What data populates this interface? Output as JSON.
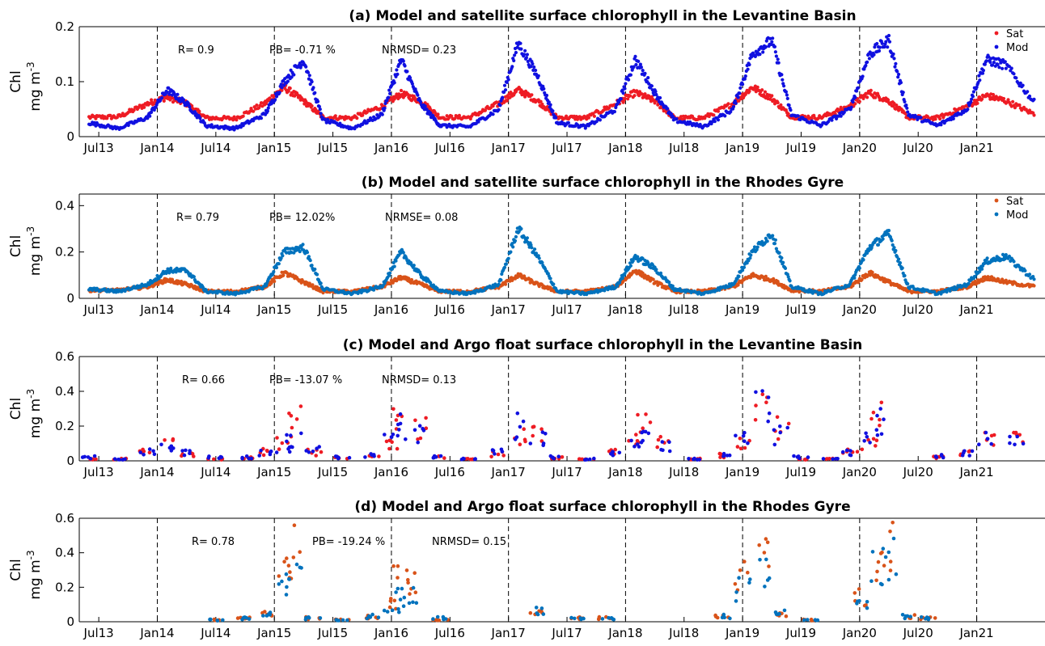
{
  "colors": {
    "sat_a": "#ee1c24",
    "mod_a": "#1010e0",
    "sat_b": "#d95319",
    "mod_b": "#0072bd"
  },
  "chart_data": [
    {
      "type": "scatter",
      "title": "(a) Model and satellite surface chlorophyll in the Levantine Basin",
      "ylabel": "Chl mg m",
      "ylabel_sup": "-3",
      "ylim": [
        0,
        0.2
      ],
      "yticks": [
        "0",
        "0.1",
        "0.2"
      ],
      "x_range": [
        "2013-05",
        "2021-08"
      ],
      "xticks": [
        "Jul13",
        "Jan14",
        "Jul14",
        "Jan15",
        "Jul15",
        "Jan16",
        "Jul16",
        "Jan17",
        "Jul17",
        "Jan18",
        "Jul18",
        "Jan19",
        "Jul19",
        "Jan20",
        "Jul20",
        "Jan21"
      ],
      "vlines_at": [
        "Jan14",
        "Jan15",
        "Jan16",
        "Jan17",
        "Jan18",
        "Jan19",
        "Jan20",
        "Jan21"
      ],
      "stats": [
        "R= 0.9",
        "PB= -0.71 %",
        "NRMSD= 0.23"
      ],
      "legend": [
        "Sat",
        "Mod"
      ],
      "legend_position": "top-right",
      "series": [
        {
          "name": "Sat",
          "color_key": "sat_a",
          "style": "dense",
          "x": [
            "2013-06",
            "2013-09",
            "2013-12",
            "2014-02",
            "2014-04",
            "2014-06",
            "2014-09",
            "2014-12",
            "2015-02",
            "2015-04",
            "2015-06",
            "2015-09",
            "2015-12",
            "2016-02",
            "2016-04",
            "2016-06",
            "2016-09",
            "2016-12",
            "2017-02",
            "2017-04",
            "2017-06",
            "2017-09",
            "2017-12",
            "2018-02",
            "2018-04",
            "2018-06",
            "2018-09",
            "2018-12",
            "2019-02",
            "2019-04",
            "2019-06",
            "2019-09",
            "2019-12",
            "2020-02",
            "2020-04",
            "2020-06",
            "2020-09",
            "2020-12",
            "2021-02",
            "2021-04",
            "2021-07"
          ],
          "y": [
            0.035,
            0.036,
            0.06,
            0.072,
            0.06,
            0.034,
            0.033,
            0.06,
            0.09,
            0.065,
            0.035,
            0.034,
            0.055,
            0.078,
            0.065,
            0.035,
            0.035,
            0.06,
            0.085,
            0.065,
            0.035,
            0.034,
            0.06,
            0.08,
            0.065,
            0.034,
            0.034,
            0.06,
            0.09,
            0.07,
            0.036,
            0.035,
            0.055,
            0.08,
            0.065,
            0.035,
            0.034,
            0.055,
            0.075,
            0.065,
            0.04
          ]
        },
        {
          "name": "Mod",
          "color_key": "mod_a",
          "style": "dense",
          "x": [
            "2013-06",
            "2013-09",
            "2013-12",
            "2014-02",
            "2014-04",
            "2014-06",
            "2014-09",
            "2014-12",
            "2015-02",
            "2015-04",
            "2015-06",
            "2015-09",
            "2015-12",
            "2016-02",
            "2016-04",
            "2016-06",
            "2016-09",
            "2016-12",
            "2017-02",
            "2017-04",
            "2017-06",
            "2017-09",
            "2017-12",
            "2018-02",
            "2018-04",
            "2018-06",
            "2018-09",
            "2018-12",
            "2019-02",
            "2019-04",
            "2019-06",
            "2019-09",
            "2019-12",
            "2020-02",
            "2020-04",
            "2020-06",
            "2020-09",
            "2020-12",
            "2021-02",
            "2021-04",
            "2021-07"
          ],
          "y": [
            0.025,
            0.015,
            0.035,
            0.085,
            0.06,
            0.02,
            0.015,
            0.04,
            0.1,
            0.14,
            0.03,
            0.015,
            0.04,
            0.14,
            0.06,
            0.02,
            0.018,
            0.05,
            0.17,
            0.11,
            0.025,
            0.018,
            0.05,
            0.14,
            0.08,
            0.03,
            0.018,
            0.05,
            0.15,
            0.175,
            0.04,
            0.02,
            0.05,
            0.15,
            0.175,
            0.04,
            0.02,
            0.05,
            0.14,
            0.13,
            0.06
          ]
        }
      ]
    },
    {
      "type": "scatter",
      "title": "(b) Model and satellite surface chlorophyll in the Rhodes  Gyre",
      "ylabel": "Chl mg m",
      "ylabel_sup": "-3",
      "ylim": [
        0,
        0.45
      ],
      "yticks": [
        "0",
        "0.2",
        "0.4"
      ],
      "x_range": [
        "2013-05",
        "2021-08"
      ],
      "xticks": [
        "Jul13",
        "Jan14",
        "Jul14",
        "Jan15",
        "Jul15",
        "Jan16",
        "Jul16",
        "Jan17",
        "Jul17",
        "Jan18",
        "Jul18",
        "Jan19",
        "Jul19",
        "Jan20",
        "Jul20",
        "Jan21"
      ],
      "vlines_at": [
        "Jan14",
        "Jan15",
        "Jan16",
        "Jan17",
        "Jan18",
        "Jan19",
        "Jan20",
        "Jan21"
      ],
      "stats": [
        "R= 0.79",
        "PB= 12.02%",
        "NRMSE= 0.08"
      ],
      "legend": [
        "Sat",
        "Mod"
      ],
      "legend_position": "top-right",
      "series": [
        {
          "name": "Sat",
          "color_key": "sat_b",
          "style": "dense",
          "x": [
            "2013-06",
            "2013-09",
            "2013-12",
            "2014-02",
            "2014-04",
            "2014-06",
            "2014-09",
            "2014-12",
            "2015-02",
            "2015-04",
            "2015-06",
            "2015-09",
            "2015-12",
            "2016-02",
            "2016-04",
            "2016-06",
            "2016-09",
            "2016-12",
            "2017-02",
            "2017-04",
            "2017-06",
            "2017-09",
            "2017-12",
            "2018-02",
            "2018-04",
            "2018-06",
            "2018-09",
            "2018-12",
            "2019-02",
            "2019-04",
            "2019-06",
            "2019-09",
            "2019-12",
            "2020-02",
            "2020-04",
            "2020-06",
            "2020-09",
            "2020-12",
            "2021-02",
            "2021-04",
            "2021-07"
          ],
          "y": [
            0.035,
            0.035,
            0.05,
            0.08,
            0.06,
            0.03,
            0.03,
            0.05,
            0.11,
            0.07,
            0.03,
            0.03,
            0.05,
            0.09,
            0.06,
            0.03,
            0.03,
            0.05,
            0.1,
            0.06,
            0.03,
            0.03,
            0.05,
            0.12,
            0.07,
            0.03,
            0.03,
            0.05,
            0.1,
            0.08,
            0.035,
            0.03,
            0.05,
            0.11,
            0.07,
            0.03,
            0.03,
            0.05,
            0.09,
            0.07,
            0.05
          ]
        },
        {
          "name": "Mod",
          "color_key": "mod_b",
          "style": "dense",
          "x": [
            "2013-06",
            "2013-09",
            "2013-12",
            "2014-02",
            "2014-04",
            "2014-06",
            "2014-09",
            "2014-12",
            "2015-02",
            "2015-04",
            "2015-06",
            "2015-09",
            "2015-12",
            "2016-02",
            "2016-04",
            "2016-06",
            "2016-09",
            "2016-12",
            "2017-02",
            "2017-04",
            "2017-06",
            "2017-09",
            "2017-12",
            "2018-02",
            "2018-04",
            "2018-06",
            "2018-09",
            "2018-12",
            "2019-02",
            "2019-04",
            "2019-06",
            "2019-09",
            "2019-12",
            "2020-02",
            "2020-04",
            "2020-06",
            "2020-09",
            "2020-12",
            "2021-02",
            "2021-04",
            "2021-07"
          ],
          "y": [
            0.04,
            0.03,
            0.06,
            0.12,
            0.12,
            0.03,
            0.02,
            0.05,
            0.2,
            0.22,
            0.04,
            0.02,
            0.05,
            0.2,
            0.1,
            0.03,
            0.02,
            0.06,
            0.3,
            0.18,
            0.03,
            0.02,
            0.05,
            0.18,
            0.13,
            0.04,
            0.02,
            0.06,
            0.2,
            0.28,
            0.05,
            0.02,
            0.06,
            0.22,
            0.28,
            0.05,
            0.02,
            0.06,
            0.16,
            0.18,
            0.08
          ]
        }
      ]
    },
    {
      "type": "scatter",
      "title": "(c) Model and Argo float surface chlorophyll in the Levantine Basin",
      "ylabel": "Chl mg m",
      "ylabel_sup": "-3",
      "ylim": [
        0,
        0.6
      ],
      "yticks": [
        "0",
        "0.2",
        "0.4",
        "0.6"
      ],
      "x_range": [
        "2013-05",
        "2021-08"
      ],
      "xticks": [
        "Jul13",
        "Jan14",
        "Jul14",
        "Jan15",
        "Jul15",
        "Jan16",
        "Jul16",
        "Jan17",
        "Jul17",
        "Jan18",
        "Jul18",
        "Jan19",
        "Jul19",
        "Jan20",
        "Jul20",
        "Jan21"
      ],
      "vlines_at": [
        "Jan14",
        "Jan15",
        "Jan16",
        "Jan17",
        "Jan18",
        "Jan19",
        "Jan20",
        "Jan21"
      ],
      "stats": [
        "R= 0.66",
        "PB= -13.07 %",
        "NRMSD= 0.13"
      ],
      "legend": [],
      "series": [
        {
          "name": "Argo",
          "color_key": "sat_a",
          "style": "sparse",
          "x": [
            "2013-06",
            "2013-09",
            "2013-12",
            "2014-02",
            "2014-04",
            "2014-07",
            "2014-10",
            "2014-12",
            "2015-02",
            "2015-03",
            "2015-05",
            "2015-08",
            "2015-11",
            "2016-01",
            "2016-02",
            "2016-04",
            "2016-06",
            "2016-09",
            "2016-12",
            "2017-02",
            "2017-04",
            "2017-06",
            "2017-09",
            "2017-12",
            "2018-02",
            "2018-03",
            "2018-05",
            "2018-08",
            "2018-11",
            "2019-01",
            "2019-03",
            "2019-05",
            "2019-07",
            "2019-10",
            "2019-12",
            "2020-02",
            "2020-03",
            "2020-09",
            "2020-12",
            "2021-02",
            "2021-05"
          ],
          "y": [
            0.01,
            0.01,
            0.05,
            0.1,
            0.04,
            0.01,
            0.02,
            0.05,
            0.1,
            0.3,
            0.05,
            0.02,
            0.03,
            0.1,
            0.3,
            0.2,
            0.02,
            0.01,
            0.04,
            0.15,
            0.15,
            0.02,
            0.01,
            0.05,
            0.12,
            0.2,
            0.1,
            0.01,
            0.03,
            0.1,
            0.35,
            0.2,
            0.01,
            0.01,
            0.05,
            0.1,
            0.25,
            0.02,
            0.05,
            0.15,
            0.12
          ]
        },
        {
          "name": "Mod",
          "color_key": "mod_a",
          "style": "sparse",
          "x": [
            "2013-06",
            "2013-09",
            "2013-12",
            "2014-02",
            "2014-04",
            "2014-07",
            "2014-10",
            "2014-12",
            "2015-02",
            "2015-03",
            "2015-05",
            "2015-08",
            "2015-11",
            "2016-01",
            "2016-02",
            "2016-04",
            "2016-06",
            "2016-09",
            "2016-12",
            "2017-02",
            "2017-04",
            "2017-06",
            "2017-09",
            "2017-12",
            "2018-02",
            "2018-03",
            "2018-05",
            "2018-08",
            "2018-11",
            "2019-01",
            "2019-03",
            "2019-05",
            "2019-07",
            "2019-10",
            "2019-12",
            "2020-02",
            "2020-03",
            "2020-09",
            "2020-12",
            "2021-02",
            "2021-05"
          ],
          "y": [
            0.02,
            0.01,
            0.05,
            0.08,
            0.05,
            0.02,
            0.02,
            0.05,
            0.08,
            0.12,
            0.06,
            0.02,
            0.03,
            0.12,
            0.2,
            0.15,
            0.02,
            0.01,
            0.05,
            0.2,
            0.12,
            0.02,
            0.01,
            0.05,
            0.12,
            0.15,
            0.08,
            0.01,
            0.03,
            0.12,
            0.3,
            0.15,
            0.02,
            0.01,
            0.05,
            0.15,
            0.22,
            0.03,
            0.05,
            0.12,
            0.12
          ]
        }
      ]
    },
    {
      "type": "scatter",
      "title": "(d) Model and Argo float surface chlorophyll in the Rhodes Gyre",
      "ylabel": "Chl mg m",
      "ylabel_sup": "-3",
      "ylim": [
        0,
        0.6
      ],
      "yticks": [
        "0",
        "0.2",
        "0.4",
        "0.6"
      ],
      "x_range": [
        "2013-05",
        "2021-08"
      ],
      "xticks": [
        "Jul13",
        "Jan14",
        "Jul14",
        "Jan15",
        "Jul15",
        "Jan16",
        "Jul16",
        "Jan17",
        "Jul17",
        "Jan18",
        "Jul18",
        "Jan19",
        "Jul19",
        "Jan20",
        "Jul20",
        "Jan21"
      ],
      "vlines_at": [
        "Jan14",
        "Jan15",
        "Jan16",
        "Jan17",
        "Jan18",
        "Jan19",
        "Jan20",
        "Jan21"
      ],
      "stats": [
        "R= 0.78",
        "PB= -19.24 %",
        "NRMSD= 0.15"
      ],
      "legend": [],
      "series": [
        {
          "name": "Argo",
          "color_key": "sat_b",
          "style": "sparse",
          "x": [
            "2014-07",
            "2014-10",
            "2014-12",
            "2015-02",
            "2015-03",
            "2015-05",
            "2015-08",
            "2015-11",
            "2016-01",
            "2016-02",
            "2016-03",
            "2016-06",
            "2017-04",
            "2017-08",
            "2017-11",
            "2018-11",
            "2019-01",
            "2019-03",
            "2019-05",
            "2019-08",
            "2020-01",
            "2020-03",
            "2020-04",
            "2020-06",
            "2020-08"
          ],
          "y": [
            0.01,
            0.02,
            0.05,
            0.3,
            0.4,
            0.02,
            0.01,
            0.03,
            0.1,
            0.3,
            0.25,
            0.01,
            0.05,
            0.02,
            0.02,
            0.03,
            0.25,
            0.35,
            0.05,
            0.01,
            0.15,
            0.3,
            0.45,
            0.03,
            0.02
          ]
        },
        {
          "name": "Mod",
          "color_key": "mod_b",
          "style": "sparse",
          "x": [
            "2014-07",
            "2014-10",
            "2014-12",
            "2015-02",
            "2015-03",
            "2015-05",
            "2015-08",
            "2015-11",
            "2016-01",
            "2016-02",
            "2016-03",
            "2016-06",
            "2017-04",
            "2017-08",
            "2017-11",
            "2018-11",
            "2019-01",
            "2019-03",
            "2019-05",
            "2019-08",
            "2020-01",
            "2020-03",
            "2020-04",
            "2020-06",
            "2020-08"
          ],
          "y": [
            0.01,
            0.02,
            0.04,
            0.2,
            0.25,
            0.02,
            0.01,
            0.03,
            0.08,
            0.15,
            0.15,
            0.02,
            0.06,
            0.02,
            0.02,
            0.03,
            0.2,
            0.3,
            0.05,
            0.01,
            0.12,
            0.3,
            0.35,
            0.03,
            0.02
          ]
        }
      ]
    }
  ]
}
